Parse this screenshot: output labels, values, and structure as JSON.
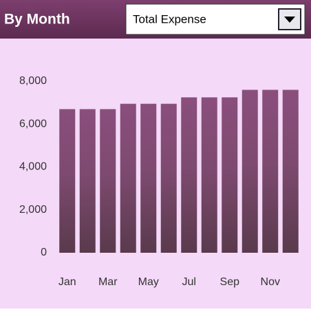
{
  "header": {
    "title": "By Month",
    "dropdown": "Total Expense"
  },
  "chart_data": {
    "type": "bar",
    "categories": [
      "Jan",
      null,
      "Mar",
      null,
      "May",
      null,
      "Jul",
      null,
      "Sep",
      null,
      "Nov",
      null
    ],
    "values": [
      6700,
      6700,
      6700,
      6950,
      6950,
      6950,
      7250,
      7250,
      7250,
      7600,
      7600,
      7600
    ],
    "color": "#8a4e7d",
    "ylim": [
      0,
      8000
    ],
    "yticks": [
      0,
      {
        "value": 2000,
        "label": "2,000"
      },
      {
        "value": 4000,
        "label": "4,000"
      },
      {
        "value": 6000,
        "label": "6,000"
      },
      {
        "value": 8000,
        "label": "8,000"
      }
    ],
    "grid": false
  }
}
